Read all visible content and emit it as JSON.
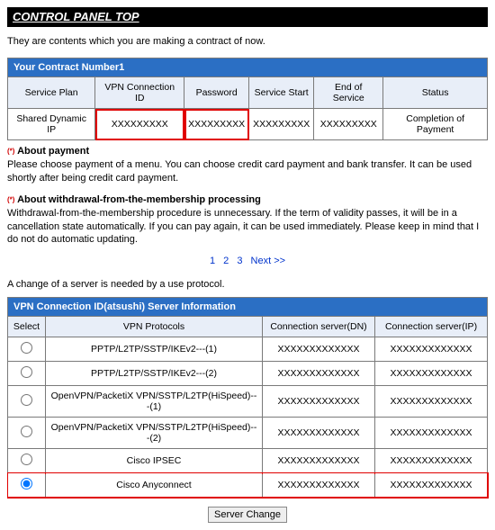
{
  "page": {
    "title": "CONTROL PANEL TOP",
    "intro": "They are contents which you are making a contract of now."
  },
  "contract": {
    "header": "Your Contract Number1",
    "columns": {
      "service_plan": "Service Plan",
      "vpn_id": "VPN Connection ID",
      "password": "Password",
      "service_start": "Service Start",
      "end_of_service": "End of Service",
      "status": "Status"
    },
    "row": {
      "service_plan": "Shared Dynamic IP",
      "vpn_id": "XXXXXXXXX",
      "password": "XXXXXXXXX",
      "service_start": "XXXXXXXXX",
      "end_of_service": "XXXXXXXXX",
      "status": "Completion of Payment"
    }
  },
  "notes": {
    "bullet": "(*)",
    "about_payment_title": "About payment",
    "about_payment_body": "Please choose payment of a menu. You can choose credit card payment and bank transfer. It can be used shortly after being credit card payment.",
    "about_withdrawal_title": "About withdrawal-from-the-membership processing",
    "about_withdrawal_body": "Withdrawal-from-the-membership procedure is unnecessary. If the term of validity passes, it will be in a cancellation state automatically. If you can pay again, it can be used immediately. Please keep in mind that I do not do automatic updating."
  },
  "pager": {
    "p1": "1",
    "p2": "2",
    "p3": "3",
    "next": "Next >>"
  },
  "server_change_caption": "A change of a server is needed by a use protocol.",
  "server_info": {
    "header": "VPN Connection ID(atsushi) Server Information",
    "columns": {
      "select": "Select",
      "protocols": "VPN Protocols",
      "server_dn": "Connection server(DN)",
      "server_ip": "Connection server(IP)"
    },
    "rows": [
      {
        "protocol": "PPTP/L2TP/SSTP/IKEv2---(1)",
        "dn": "XXXXXXXXXXXXX",
        "ip": "XXXXXXXXXXXXX",
        "selected": false
      },
      {
        "protocol": "PPTP/L2TP/SSTP/IKEv2---(2)",
        "dn": "XXXXXXXXXXXXX",
        "ip": "XXXXXXXXXXXXX",
        "selected": false
      },
      {
        "protocol": "OpenVPN/PacketiX VPN/SSTP/L2TP(HiSpeed)---(1)",
        "dn": "XXXXXXXXXXXXX",
        "ip": "XXXXXXXXXXXXX",
        "selected": false
      },
      {
        "protocol": "OpenVPN/PacketiX VPN/SSTP/L2TP(HiSpeed)---(2)",
        "dn": "XXXXXXXXXXXXX",
        "ip": "XXXXXXXXXXXXX",
        "selected": false
      },
      {
        "protocol": "Cisco IPSEC",
        "dn": "XXXXXXXXXXXXX",
        "ip": "XXXXXXXXXXXXX",
        "selected": false
      },
      {
        "protocol": "Cisco Anyconnect",
        "dn": "XXXXXXXXXXXXX",
        "ip": "XXXXXXXXXXXXX",
        "selected": true
      }
    ]
  },
  "buttons": {
    "server_change": "Server Change"
  },
  "colors": {
    "header_blue": "#2b6fc4",
    "highlight_red": "#e00000",
    "th_bg": "#e8eef8",
    "border": "#7a7a7a"
  }
}
